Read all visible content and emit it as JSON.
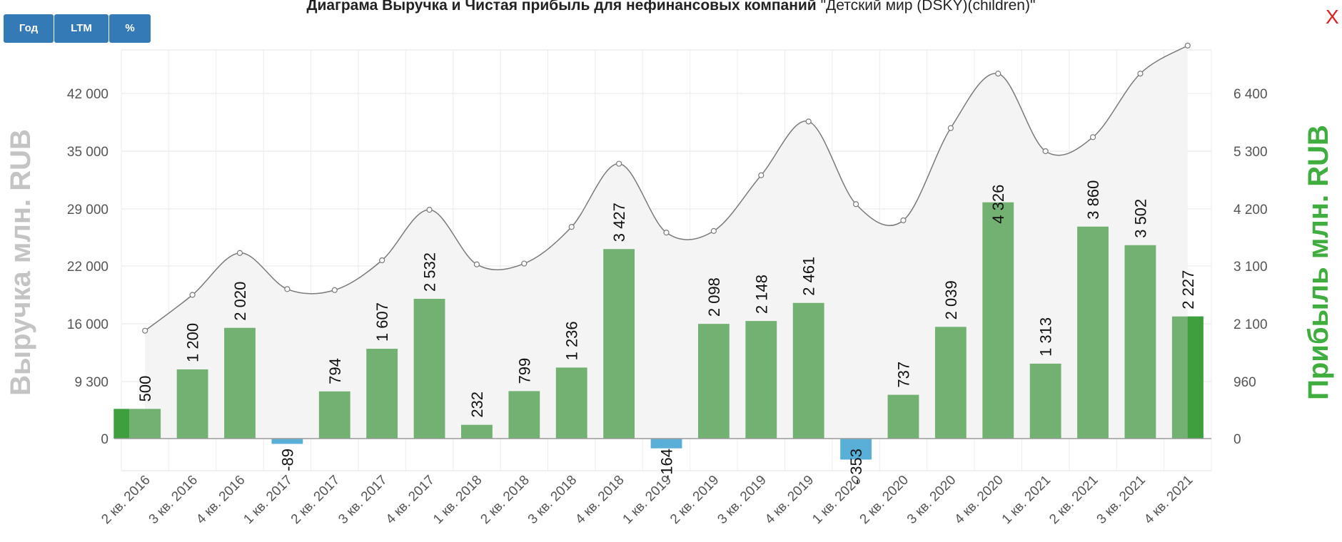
{
  "title": {
    "bold": "Диаграма Выручка и Чистая прибыль для нефинансовых компаний",
    "subtitle": "\"Детский мир (DSKY)(children)\""
  },
  "buttons": {
    "year": "Год",
    "ltm": "LTM",
    "percent": "%"
  },
  "close_label": "X",
  "colors": {
    "bar_positive": "#72b172",
    "bar_negative": "#5aafd9",
    "bar_highlight": "#3f9f3f",
    "line": "#7a7a7a",
    "area": "#f4f4f4",
    "left_axis_title": "#c4c4c4",
    "right_axis_title": "#3fae3f"
  },
  "chart_data": {
    "type": "bar+line",
    "categories": [
      "2 кв. 2016",
      "3 кв. 2016",
      "4 кв. 2016",
      "1 кв. 2017",
      "2 кв. 2017",
      "3 кв. 2017",
      "4 кв. 2017",
      "1 кв. 2018",
      "2 кв. 2018",
      "3 кв. 2018",
      "4 кв. 2018",
      "1 кв. 2019",
      "2 кв. 2019",
      "3 кв. 2019",
      "4 кв. 2019",
      "1 кв. 2020",
      "2 кв. 2020",
      "3 кв. 2020",
      "4 кв. 2020",
      "1 кв. 2021",
      "2 кв. 2021",
      "3 кв. 2021",
      "4 кв. 2021"
    ],
    "left_axis": {
      "title": "Выручка млн. RUB",
      "ticks": [
        0,
        9300,
        16000,
        22000,
        29000,
        35000,
        42000
      ],
      "tick_labels": [
        "0",
        "9 300",
        "16 000",
        "22 000",
        "29 000",
        "35 000",
        "42 000"
      ]
    },
    "right_axis": {
      "title": "Прибыль млн. RUB",
      "ticks": [
        0,
        960,
        2100,
        3100,
        4200,
        5300,
        6400
      ],
      "tick_labels": [
        "0",
        "960",
        "2 100",
        "3 100",
        "4 200",
        "5 300",
        "6 400"
      ]
    },
    "series": [
      {
        "type": "line",
        "axis": "left",
        "values": [
          15200,
          19000,
          23600,
          19600,
          19500,
          22700,
          28900,
          22200,
          22300,
          26800,
          33700,
          26100,
          26300,
          32500,
          38600,
          29500,
          27600,
          37800,
          44400,
          35000,
          36700,
          44400,
          47800
        ]
      },
      {
        "type": "bar",
        "axis": "right",
        "values": [
          500,
          1200,
          2020,
          -89,
          794,
          1607,
          2532,
          232,
          799,
          1236,
          3427,
          -164,
          2098,
          2148,
          2461,
          -353,
          737,
          2039,
          4326,
          1313,
          3860,
          3502,
          2227
        ],
        "labels": [
          "500",
          "1 200",
          "2 020",
          "-89",
          "794",
          "1 607",
          "2 532",
          "232",
          "799",
          "1 236",
          "3 427",
          "-164",
          "2 098",
          "2 148",
          "2 461",
          "- 353",
          "737",
          "2 039",
          "4 326",
          "1 313",
          "3 860",
          "3 502",
          "2 227"
        ]
      }
    ]
  }
}
